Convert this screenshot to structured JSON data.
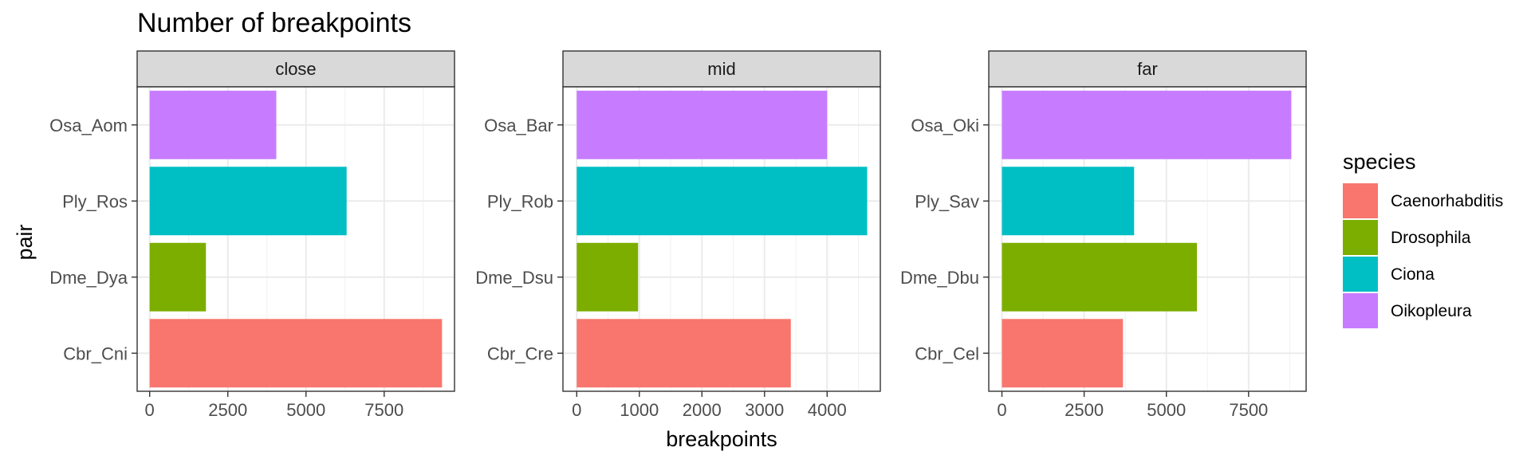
{
  "chart_data": {
    "type": "bar",
    "orientation": "horizontal",
    "title": "Number of breakpoints",
    "xlabel": "breakpoints",
    "ylabel": "pair",
    "grid": true,
    "legend_position": "right",
    "legend": {
      "title": "species",
      "entries": [
        {
          "label": "Caenorhabditis",
          "color": "#F8766D"
        },
        {
          "label": "Drosophila",
          "color": "#7CAE00"
        },
        {
          "label": "Ciona",
          "color": "#00BFC4"
        },
        {
          "label": "Oikopleura",
          "color": "#C77CFF"
        }
      ]
    },
    "panels": [
      {
        "strip": "close",
        "xlim": [
          -400,
          9750
        ],
        "xticks": [
          0,
          2500,
          5000,
          7500
        ],
        "xtick_labels": [
          "0",
          "2500",
          "5000",
          "7500"
        ],
        "bars": [
          {
            "category": "Osa_Aom",
            "species": "Oikopleura",
            "value": 4050
          },
          {
            "category": "Ply_Ros",
            "species": "Ciona",
            "value": 6300
          },
          {
            "category": "Dme_Dya",
            "species": "Drosophila",
            "value": 1800
          },
          {
            "category": "Cbr_Cni",
            "species": "Caenorhabditis",
            "value": 9350
          }
        ]
      },
      {
        "strip": "mid",
        "xlim": [
          -220,
          4850
        ],
        "xticks": [
          0,
          1000,
          2000,
          3000,
          4000
        ],
        "xtick_labels": [
          "0",
          "1000",
          "2000",
          "3000",
          "4000"
        ],
        "bars": [
          {
            "category": "Osa_Bar",
            "species": "Oikopleura",
            "value": 4000
          },
          {
            "category": "Ply_Rob",
            "species": "Ciona",
            "value": 4640
          },
          {
            "category": "Dme_Dsu",
            "species": "Drosophila",
            "value": 980
          },
          {
            "category": "Cbr_Cre",
            "species": "Caenorhabditis",
            "value": 3420
          }
        ]
      },
      {
        "strip": "far",
        "xlim": [
          -400,
          9250
        ],
        "xticks": [
          0,
          2500,
          5000,
          7500
        ],
        "xtick_labels": [
          "0",
          "2500",
          "5000",
          "7500"
        ],
        "bars": [
          {
            "category": "Osa_Oki",
            "species": "Oikopleura",
            "value": 8800
          },
          {
            "category": "Ply_Sav",
            "species": "Ciona",
            "value": 4020
          },
          {
            "category": "Dme_Dbu",
            "species": "Drosophila",
            "value": 5930
          },
          {
            "category": "Cbr_Cel",
            "species": "Caenorhabditis",
            "value": 3680
          }
        ]
      }
    ]
  }
}
